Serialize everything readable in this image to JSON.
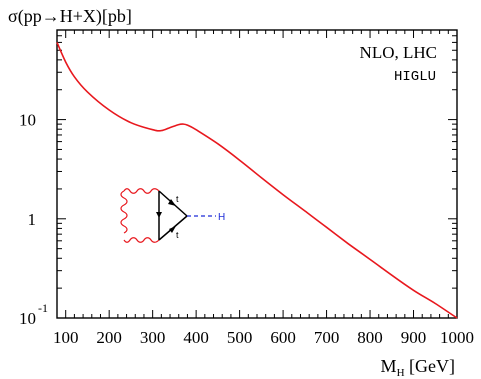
{
  "chart_data": {
    "type": "line",
    "title": "σ(pp→H+X)[pb]",
    "xlabel": "M",
    "xlabel_subscript": "H",
    "xlabel_unit": " [GeV]",
    "xlim": [
      80,
      1000
    ],
    "ylim": [
      0.1,
      80
    ],
    "yscale": "log",
    "grid": false,
    "xticks": [
      100,
      200,
      300,
      400,
      500,
      600,
      700,
      800,
      900,
      1000
    ],
    "yticks": [
      {
        "value": 10,
        "label": "10",
        "exp": ""
      },
      {
        "value": 1,
        "label": "1",
        "exp": ""
      },
      {
        "value": 0.1,
        "label": "10",
        "exp": "-1"
      }
    ],
    "annotations": [
      "NLO, LHC",
      "HIGLU"
    ],
    "series": [
      {
        "color": "#e8181e",
        "x": [
          80,
          100,
          120,
          150,
          200,
          250,
          300,
          320,
          340,
          360,
          370,
          380,
          400,
          450,
          500,
          550,
          600,
          650,
          700,
          750,
          800,
          850,
          900,
          950,
          1000
        ],
        "y": [
          60,
          38,
          27,
          19,
          12.5,
          9.3,
          7.9,
          7.75,
          8.3,
          8.9,
          9.0,
          8.8,
          7.9,
          5.7,
          3.9,
          2.6,
          1.75,
          1.2,
          0.82,
          0.56,
          0.39,
          0.27,
          0.19,
          0.14,
          0.1
        ]
      }
    ]
  },
  "diagram": {
    "top_quark": "t",
    "bottom_quark": "t",
    "higgs": "H",
    "gluon_color": "#e8181e",
    "quark_color": "#000000",
    "higgs_color": "#1c2bd8"
  }
}
